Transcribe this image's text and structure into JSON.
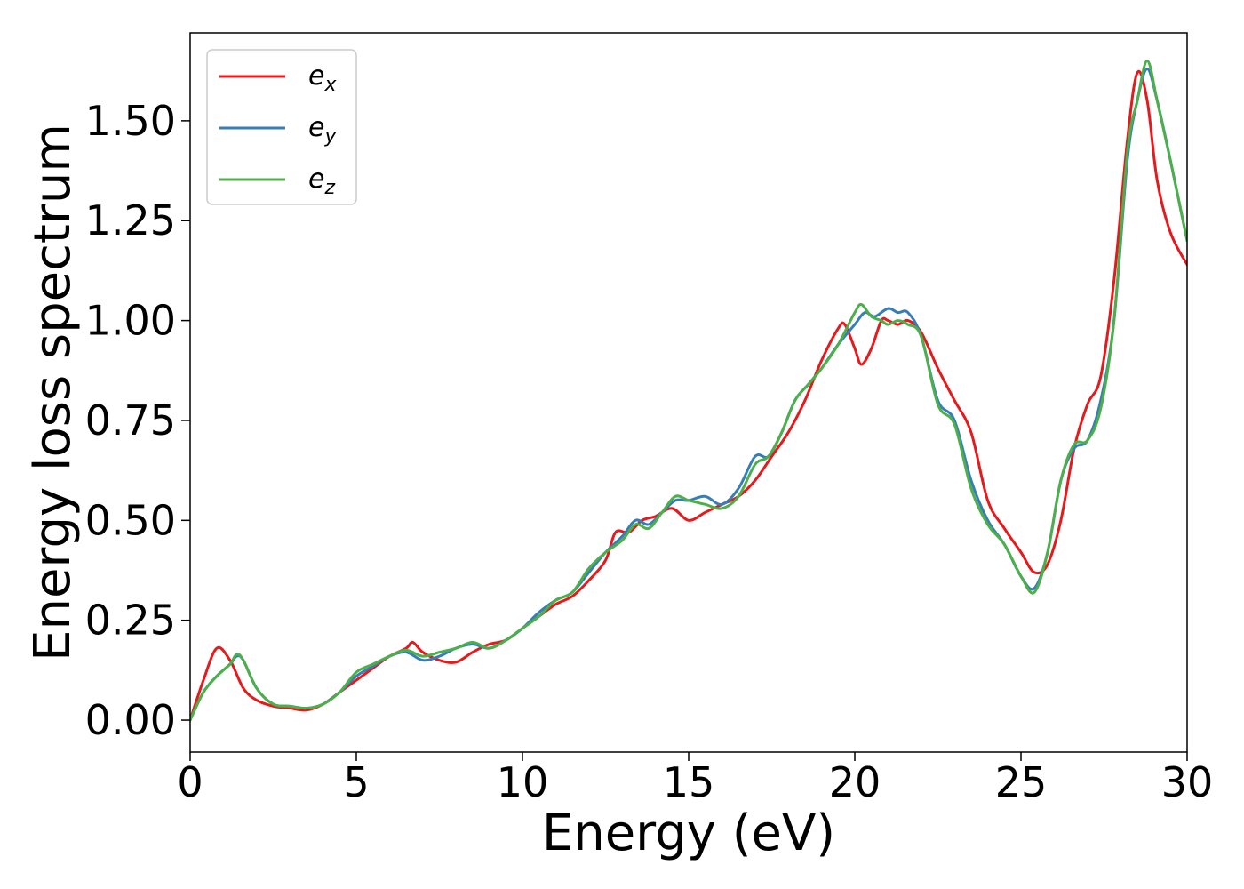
{
  "chart_data": {
    "type": "line",
    "title": "",
    "xlabel": "Energy (eV)",
    "ylabel": "Energy loss spectrum",
    "xlim": [
      0,
      30
    ],
    "ylim": [
      -0.08,
      1.72
    ],
    "xticks": [
      0,
      5,
      10,
      15,
      20,
      25,
      30
    ],
    "xtick_labels": [
      "0",
      "5",
      "10",
      "15",
      "20",
      "25",
      "30"
    ],
    "yticks": [
      0,
      0.25,
      0.5,
      0.75,
      1.0,
      1.25,
      1.5
    ],
    "ytick_labels": [
      "0.00",
      "0.25",
      "0.50",
      "0.75",
      "1.00",
      "1.25",
      "1.50"
    ],
    "grid": false,
    "legend_position": "top-left",
    "series": [
      {
        "name": "e",
        "subscript": "x",
        "color": "#e41a1c",
        "x": [
          0,
          0.4,
          0.8,
          1.2,
          1.6,
          2.0,
          2.5,
          3.0,
          3.5,
          4.0,
          4.5,
          5.0,
          5.5,
          6.0,
          6.5,
          6.7,
          7.0,
          7.5,
          8.0,
          8.5,
          9.0,
          9.5,
          10.0,
          10.5,
          11.0,
          11.5,
          12.0,
          12.5,
          12.8,
          13.2,
          13.6,
          14.0,
          14.5,
          15.0,
          15.5,
          16.0,
          16.5,
          17.0,
          17.5,
          18.0,
          18.5,
          19.0,
          19.5,
          19.7,
          20.0,
          20.2,
          20.5,
          20.8,
          21.0,
          21.3,
          21.6,
          22.0,
          22.5,
          23.0,
          23.5,
          24.0,
          24.5,
          25.0,
          25.4,
          25.8,
          26.2,
          26.6,
          27.0,
          27.4,
          27.8,
          28.2,
          28.5,
          28.8,
          29.1,
          29.5,
          30.0
        ],
        "y": [
          0.0,
          0.1,
          0.18,
          0.15,
          0.08,
          0.05,
          0.035,
          0.03,
          0.025,
          0.04,
          0.07,
          0.1,
          0.13,
          0.16,
          0.18,
          0.195,
          0.17,
          0.15,
          0.145,
          0.17,
          0.19,
          0.2,
          0.23,
          0.26,
          0.29,
          0.31,
          0.35,
          0.4,
          0.47,
          0.47,
          0.5,
          0.51,
          0.53,
          0.5,
          0.52,
          0.54,
          0.56,
          0.6,
          0.66,
          0.72,
          0.8,
          0.9,
          0.98,
          0.99,
          0.93,
          0.89,
          0.93,
          1.0,
          1.0,
          0.99,
          1.0,
          0.97,
          0.88,
          0.8,
          0.72,
          0.55,
          0.48,
          0.42,
          0.37,
          0.39,
          0.5,
          0.68,
          0.79,
          0.86,
          1.1,
          1.45,
          1.62,
          1.55,
          1.35,
          1.22,
          1.14
        ]
      },
      {
        "name": "e",
        "subscript": "y",
        "color": "#377eb8",
        "x": [
          0,
          0.4,
          0.8,
          1.2,
          1.4,
          1.6,
          2.0,
          2.5,
          3.0,
          3.5,
          4.0,
          4.5,
          5.0,
          5.5,
          6.0,
          6.5,
          7.0,
          7.5,
          8.0,
          8.5,
          9.0,
          9.5,
          10.0,
          10.5,
          11.0,
          11.5,
          12.0,
          12.5,
          13.0,
          13.4,
          13.8,
          14.2,
          14.6,
          15.0,
          15.5,
          16.0,
          16.5,
          17.0,
          17.4,
          17.8,
          18.2,
          18.6,
          19.0,
          19.5,
          20.0,
          20.3,
          20.6,
          21.0,
          21.3,
          21.6,
          22.0,
          22.5,
          23.0,
          23.5,
          24.0,
          24.5,
          25.0,
          25.4,
          25.8,
          26.2,
          26.6,
          27.0,
          27.4,
          27.8,
          28.2,
          28.5,
          28.8,
          29.1,
          29.5,
          30.0
        ],
        "y": [
          0.0,
          0.07,
          0.11,
          0.14,
          0.16,
          0.15,
          0.08,
          0.04,
          0.035,
          0.03,
          0.04,
          0.07,
          0.11,
          0.135,
          0.16,
          0.17,
          0.15,
          0.16,
          0.18,
          0.19,
          0.18,
          0.2,
          0.23,
          0.27,
          0.3,
          0.32,
          0.37,
          0.42,
          0.46,
          0.5,
          0.49,
          0.52,
          0.55,
          0.55,
          0.56,
          0.54,
          0.58,
          0.66,
          0.66,
          0.72,
          0.8,
          0.84,
          0.88,
          0.94,
          0.99,
          1.02,
          1.01,
          1.03,
          1.02,
          1.02,
          0.96,
          0.8,
          0.75,
          0.6,
          0.5,
          0.44,
          0.36,
          0.33,
          0.42,
          0.6,
          0.68,
          0.7,
          0.8,
          1.0,
          1.4,
          1.55,
          1.63,
          1.55,
          1.4,
          1.2
        ]
      },
      {
        "name": "e",
        "subscript": "z",
        "color": "#4daf4a",
        "x": [
          0,
          0.4,
          0.8,
          1.2,
          1.4,
          1.6,
          2.0,
          2.5,
          3.0,
          3.5,
          4.0,
          4.5,
          5.0,
          5.5,
          6.0,
          6.5,
          7.0,
          7.5,
          8.0,
          8.5,
          9.0,
          9.5,
          10.0,
          10.5,
          11.0,
          11.5,
          12.0,
          12.5,
          13.0,
          13.4,
          13.8,
          14.2,
          14.6,
          15.0,
          15.5,
          16.0,
          16.5,
          17.0,
          17.4,
          17.8,
          18.2,
          18.6,
          19.0,
          19.5,
          20.0,
          20.2,
          20.5,
          20.8,
          21.0,
          21.3,
          21.6,
          22.0,
          22.5,
          23.0,
          23.5,
          24.0,
          24.5,
          25.0,
          25.4,
          25.8,
          26.2,
          26.6,
          27.0,
          27.4,
          27.8,
          28.2,
          28.5,
          28.8,
          29.1,
          29.5,
          30.0
        ],
        "y": [
          0.0,
          0.07,
          0.11,
          0.14,
          0.165,
          0.15,
          0.08,
          0.04,
          0.035,
          0.03,
          0.04,
          0.07,
          0.12,
          0.14,
          0.16,
          0.175,
          0.16,
          0.17,
          0.18,
          0.195,
          0.18,
          0.2,
          0.23,
          0.26,
          0.3,
          0.32,
          0.38,
          0.42,
          0.45,
          0.49,
          0.48,
          0.52,
          0.56,
          0.55,
          0.54,
          0.53,
          0.56,
          0.64,
          0.66,
          0.72,
          0.8,
          0.84,
          0.88,
          0.94,
          1.02,
          1.04,
          1.01,
          1.0,
          0.99,
          1.0,
          0.99,
          0.96,
          0.79,
          0.74,
          0.58,
          0.49,
          0.44,
          0.36,
          0.32,
          0.42,
          0.6,
          0.69,
          0.7,
          0.78,
          1.0,
          1.42,
          1.55,
          1.65,
          1.55,
          1.4,
          1.2
        ]
      }
    ]
  }
}
